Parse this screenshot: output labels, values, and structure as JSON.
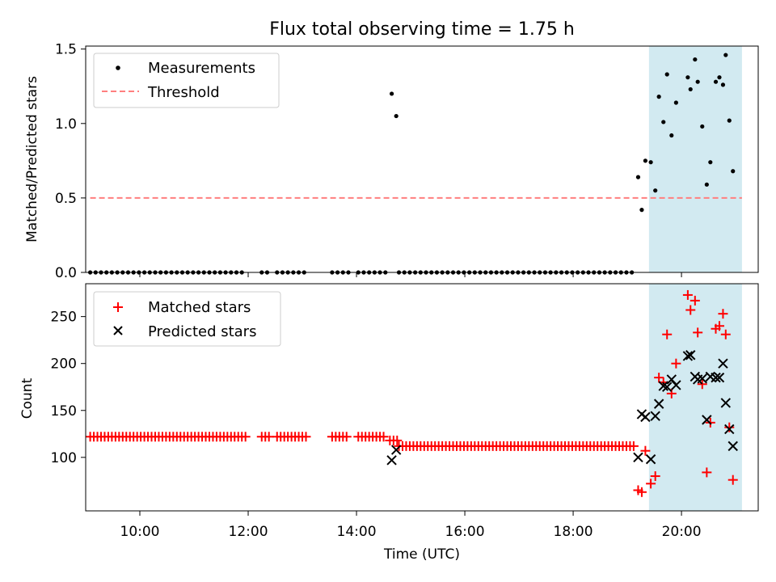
{
  "chart_data": [
    {
      "type": "scatter",
      "title": "Flux total observing time = 1.75 h",
      "ylabel": "Matched/Predicted stars",
      "xlabel": "",
      "xlim": [
        "09:00",
        "21:25"
      ],
      "ylim": [
        0,
        1.52
      ],
      "yticks": [
        {
          "v": 0,
          "label": "0.0"
        },
        {
          "v": 0.5,
          "label": "0.5"
        },
        {
          "v": 1.0,
          "label": "1.0"
        },
        {
          "v": 1.5,
          "label": "1.5"
        }
      ],
      "legend_position": "top-left",
      "highlight_span": {
        "start": "19:24",
        "end": "21:07",
        "color": "#add8e6"
      },
      "threshold": {
        "name": "Threshold",
        "value": 0.5,
        "start": "09:05",
        "end": "21:07",
        "color": "#ff7f7f"
      },
      "series": [
        {
          "name": "Measurements",
          "marker": "dot",
          "color": "#000000",
          "zero_runs": [
            {
              "start": "09:05",
              "end": "11:58",
              "step_min": 6
            },
            {
              "start": "12:15",
              "end": "12:23",
              "step_min": 6
            },
            {
              "start": "12:32",
              "end": "13:04",
              "step_min": 6
            },
            {
              "start": "13:33",
              "end": "13:51",
              "step_min": 6
            },
            {
              "start": "14:02",
              "end": "14:33",
              "step_min": 6
            },
            {
              "start": "14:47",
              "end": "19:08",
              "step_min": 6
            }
          ],
          "points": [
            {
              "x": "14:39",
              "y": 1.2
            },
            {
              "x": "14:44",
              "y": 1.05
            },
            {
              "x": "19:12",
              "y": 0.64
            },
            {
              "x": "19:16",
              "y": 0.42
            },
            {
              "x": "19:20",
              "y": 0.75
            },
            {
              "x": "19:26",
              "y": 0.74
            },
            {
              "x": "19:31",
              "y": 0.55
            },
            {
              "x": "19:35",
              "y": 1.18
            },
            {
              "x": "19:40",
              "y": 1.01
            },
            {
              "x": "19:44",
              "y": 1.33
            },
            {
              "x": "19:49",
              "y": 0.92
            },
            {
              "x": "19:54",
              "y": 1.14
            },
            {
              "x": "20:07",
              "y": 1.31
            },
            {
              "x": "20:10",
              "y": 1.23
            },
            {
              "x": "20:15",
              "y": 1.43
            },
            {
              "x": "20:18",
              "y": 1.28
            },
            {
              "x": "20:23",
              "y": 0.98
            },
            {
              "x": "20:28",
              "y": 0.59
            },
            {
              "x": "20:32",
              "y": 0.74
            },
            {
              "x": "20:38",
              "y": 1.28
            },
            {
              "x": "20:42",
              "y": 1.31
            },
            {
              "x": "20:46",
              "y": 1.26
            },
            {
              "x": "20:49",
              "y": 1.46
            },
            {
              "x": "20:53",
              "y": 1.02
            },
            {
              "x": "20:57",
              "y": 0.68
            }
          ]
        }
      ]
    },
    {
      "type": "scatter",
      "title": "",
      "xlabel": "Time (UTC)",
      "ylabel": "Count",
      "xlim": [
        "09:00",
        "21:25"
      ],
      "ylim": [
        43,
        285
      ],
      "xticks": [
        "10:00",
        "12:00",
        "14:00",
        "16:00",
        "18:00",
        "20:00"
      ],
      "yticks": [
        100,
        150,
        200,
        250
      ],
      "legend_position": "top-left",
      "highlight_span": {
        "start": "19:24",
        "end": "21:07",
        "color": "#add8e6"
      },
      "series": [
        {
          "name": "Matched stars",
          "marker": "plus",
          "color": "#ff0000",
          "runs": [
            {
              "start": "09:05",
              "end": "11:58",
              "step_min": 4,
              "value": 122
            },
            {
              "start": "12:15",
              "end": "12:23",
              "step_min": 4,
              "value": 122
            },
            {
              "start": "12:32",
              "end": "13:04",
              "step_min": 4,
              "value": 122
            },
            {
              "start": "13:33",
              "end": "13:51",
              "step_min": 4,
              "value": 122
            },
            {
              "start": "14:02",
              "end": "14:33",
              "step_min": 4,
              "value": 122
            },
            {
              "start": "14:37",
              "end": "14:45",
              "step_min": 4,
              "value": 118
            },
            {
              "start": "14:47",
              "end": "19:08",
              "step_min": 4,
              "value": 112
            }
          ],
          "points": [
            {
              "x": "19:12",
              "y": 65
            },
            {
              "x": "19:16",
              "y": 63
            },
            {
              "x": "19:20",
              "y": 107
            },
            {
              "x": "19:26",
              "y": 72
            },
            {
              "x": "19:31",
              "y": 80
            },
            {
              "x": "19:35",
              "y": 185
            },
            {
              "x": "19:40",
              "y": 180
            },
            {
              "x": "19:44",
              "y": 231
            },
            {
              "x": "19:49",
              "y": 168
            },
            {
              "x": "19:54",
              "y": 200
            },
            {
              "x": "20:07",
              "y": 273
            },
            {
              "x": "20:10",
              "y": 257
            },
            {
              "x": "20:15",
              "y": 267
            },
            {
              "x": "20:18",
              "y": 233
            },
            {
              "x": "20:23",
              "y": 178
            },
            {
              "x": "20:28",
              "y": 84
            },
            {
              "x": "20:32",
              "y": 137
            },
            {
              "x": "20:38",
              "y": 237
            },
            {
              "x": "20:42",
              "y": 240
            },
            {
              "x": "20:46",
              "y": 253
            },
            {
              "x": "20:49",
              "y": 231
            },
            {
              "x": "20:53",
              "y": 132
            },
            {
              "x": "20:57",
              "y": 76
            }
          ]
        },
        {
          "name": "Predicted stars",
          "marker": "x",
          "color": "#000000",
          "points": [
            {
              "x": "14:39",
              "y": 97
            },
            {
              "x": "14:44",
              "y": 108
            },
            {
              "x": "19:12",
              "y": 100
            },
            {
              "x": "19:16",
              "y": 146
            },
            {
              "x": "19:20",
              "y": 143
            },
            {
              "x": "19:26",
              "y": 98
            },
            {
              "x": "19:31",
              "y": 144
            },
            {
              "x": "19:35",
              "y": 157
            },
            {
              "x": "19:40",
              "y": 176
            },
            {
              "x": "19:44",
              "y": 175
            },
            {
              "x": "19:49",
              "y": 183
            },
            {
              "x": "19:54",
              "y": 177
            },
            {
              "x": "20:07",
              "y": 208
            },
            {
              "x": "20:10",
              "y": 209
            },
            {
              "x": "20:15",
              "y": 186
            },
            {
              "x": "20:18",
              "y": 183
            },
            {
              "x": "20:23",
              "y": 184
            },
            {
              "x": "20:28",
              "y": 140
            },
            {
              "x": "20:32",
              "y": 186
            },
            {
              "x": "20:38",
              "y": 185
            },
            {
              "x": "20:42",
              "y": 185
            },
            {
              "x": "20:46",
              "y": 200
            },
            {
              "x": "20:49",
              "y": 158
            },
            {
              "x": "20:53",
              "y": 130
            },
            {
              "x": "20:57",
              "y": 112
            }
          ]
        }
      ]
    }
  ]
}
